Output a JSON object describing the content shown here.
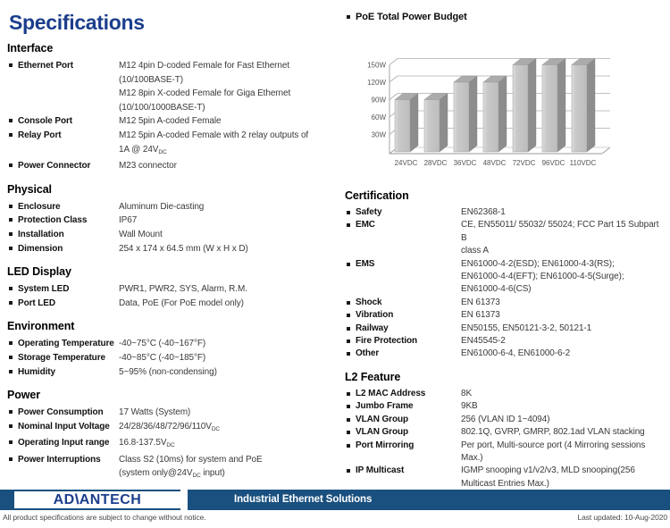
{
  "page_title": "Specifications",
  "accent_colors": {
    "title_blue": "#1b3e8c",
    "footer_blue": "#1a507f"
  },
  "left_sections": [
    {
      "title": "Interface",
      "rows": [
        {
          "label": "Ethernet Port",
          "value": "M12 4pin D-coded Female for Fast Ethernet\n(10/100BASE-T)\nM12 8pin X-coded Female for Giga Ethernet\n(10/100/1000BASE-T)"
        },
        {
          "label": "Console Port",
          "value": "M12 5pin A-coded Female"
        },
        {
          "label": "Relay Port",
          "value": "M12 5pin A-coded Female with 2 relay outputs of\n1A @ 24V<sub>DC</sub>"
        },
        {
          "label": "Power Connector",
          "value": "M23 connector"
        }
      ]
    },
    {
      "title": "Physical",
      "rows": [
        {
          "label": "Enclosure",
          "value": "Aluminum Die-casting"
        },
        {
          "label": "Protection Class",
          "value": "IP67"
        },
        {
          "label": "Installation",
          "value": "Wall Mount"
        },
        {
          "label": "Dimension",
          "value": "254 x 174 x 64.5 mm (W x H x D)"
        }
      ]
    },
    {
      "title": "LED Display",
      "rows": [
        {
          "label": "System LED",
          "value": "PWR1, PWR2, SYS, Alarm, R.M."
        },
        {
          "label": "Port LED",
          "value": "Data, PoE (For PoE model only)"
        }
      ]
    },
    {
      "title": "Environment",
      "rows": [
        {
          "label": "Operating Temperature",
          "value": "-40~75°C (-40~167°F)"
        },
        {
          "label": "Storage Temperature",
          "value": "-40~85°C (-40~185°F)"
        },
        {
          "label": "Humidity",
          "value": "5~95% (non-condensing)"
        }
      ]
    },
    {
      "title": "Power",
      "rows": [
        {
          "label": "Power Consumption",
          "value": "17 Watts (System)"
        },
        {
          "label": "Nominal Input Voltage",
          "value": "24/28/36/48/72/96/110V<sub>DC</sub>"
        },
        {
          "label": "Operating Input range",
          "value": "16.8-137.5V<sub>DC</sub>"
        },
        {
          "label": "Power Interruptions",
          "value": "Class S2 (10ms) for system and PoE\n(system only@24V<sub>DC</sub> input)"
        }
      ]
    }
  ],
  "right_sections": [
    {
      "title": "Certification",
      "rows": [
        {
          "label": "Safety",
          "value": "EN62368-1"
        },
        {
          "label": "EMC",
          "value": "CE, EN55011/ 55032/ 55024; FCC Part 15 Subpart B\nclass A"
        },
        {
          "label": "EMS",
          "value": "EN61000-4-2(ESD); EN61000-4-3(RS);\nEN61000-4-4(EFT); EN61000-4-5(Surge);\nEN61000-4-6(CS)"
        },
        {
          "label": "Shock",
          "value": "EN 61373"
        },
        {
          "label": "Vibration",
          "value": "EN 61373"
        },
        {
          "label": "Railway",
          "value": "EN50155, EN50121-3-2, 50121-1"
        },
        {
          "label": "Fire Protection",
          "value": "EN45545-2"
        },
        {
          "label": "Other",
          "value": "EN61000-6-4, EN61000-6-2"
        }
      ]
    },
    {
      "title": "L2 Feature",
      "rows": [
        {
          "label": "L2 MAC Address",
          "value": "8K"
        },
        {
          "label": "Jumbo Frame",
          "value": "9KB"
        },
        {
          "label": "VLAN Group",
          "value": "256 (VLAN ID 1~4094)"
        },
        {
          "label": "VLAN Group",
          "value": "802.1Q, GVRP, GMRP, 802.1ad VLAN stacking"
        },
        {
          "label": "Port Mirroring",
          "value": "Per port, Multi-source port (4 Mirroring sessions\nMax.)"
        },
        {
          "label": "IP Multicast",
          "value": "IGMP snooping v1/v2/v3, MLD snooping(256\nMulticast Entries Max.)"
        }
      ]
    }
  ],
  "chart_data": {
    "type": "bar",
    "title": "PoE Total Power Budget",
    "categories": [
      "24VDC",
      "28VDC",
      "36VDC",
      "48VDC",
      "72VDC",
      "96VDC",
      "110VDC"
    ],
    "values": [
      90,
      90,
      120,
      120,
      150,
      150,
      150
    ],
    "ylim": [
      0,
      160
    ],
    "ytick_values": [
      30,
      60,
      90,
      120,
      150
    ],
    "ytick_labels": [
      "30W",
      "60W",
      "90W",
      "120W",
      "150W"
    ],
    "xlabel": "",
    "ylabel": "",
    "grid": "on",
    "legend": "none",
    "style_3d": true,
    "bar_front_color": "#c9c9c9",
    "bar_front_light": "#dedede",
    "bar_side_color": "#8d8d8d",
    "bar_top_color": "#ababab",
    "grid_color": "#aeaeae",
    "axis_text_color": "#555555"
  },
  "footer": {
    "logo_prefix": "AD",
    "logo_v": "\\",
    "logo_suffix": "ANTECH",
    "tagline": "Industrial Ethernet Solutions",
    "disclaimer": "All product specifications are subject to change without notice.",
    "last_updated": "Last updated: 10-Aug-2020"
  }
}
